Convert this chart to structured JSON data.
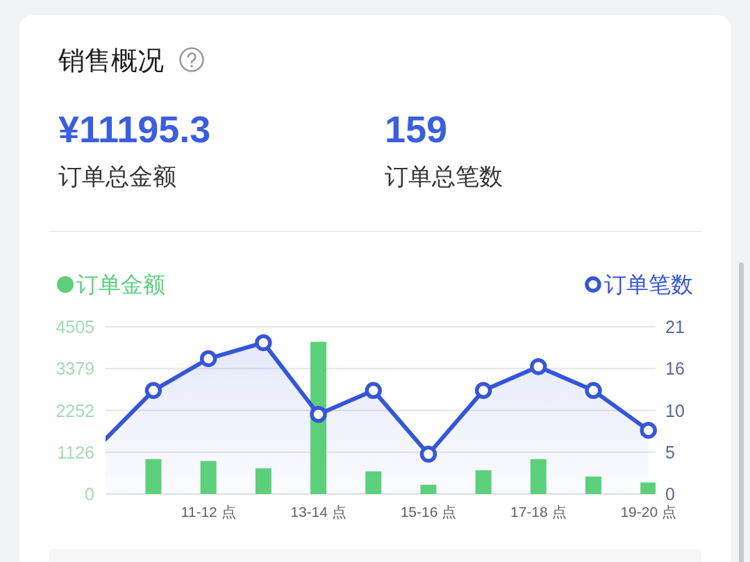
{
  "chart_data": [
    {
      "type": "other",
      "title": "销售概况",
      "annotations": [
        "¥11195.3",
        "订单总金额",
        "159",
        "订单总笔数"
      ]
    },
    {
      "type": "bar",
      "categories": [
        null,
        null,
        "11-12 点",
        null,
        "13-14 点",
        null,
        "15-16 点",
        null,
        "17-18 点",
        null,
        "19-20 点"
      ],
      "series": [
        {
          "name": "订单金额",
          "type": "bar",
          "color": "#5ccf7a",
          "values": [
            null,
            940,
            890,
            690,
            4100,
            610,
            250,
            640,
            940,
            470,
            310
          ]
        },
        {
          "name": "订单笔数",
          "type": "area",
          "axis": "y2",
          "color": "#3556d8",
          "values": [
            6,
            13,
            17,
            19,
            10,
            13,
            5,
            13,
            16,
            13,
            8
          ]
        }
      ],
      "ylim": [
        0,
        4505
      ],
      "yticks": [
        0,
        {
          "value": 1126.25,
          "label": "1126"
        },
        {
          "value": 2252.5,
          "label": "2252"
        },
        {
          "value": 3378.75,
          "label": "3379"
        },
        4505
      ],
      "y2lim": [
        0,
        21
      ],
      "y2ticks": [
        0,
        {
          "value": 5.25,
          "label": "5"
        },
        {
          "value": 10.5,
          "label": "10"
        },
        {
          "value": 15.75,
          "label": "16"
        },
        21
      ],
      "grid": "y",
      "legend": "top",
      "marker": "circle"
    }
  ]
}
